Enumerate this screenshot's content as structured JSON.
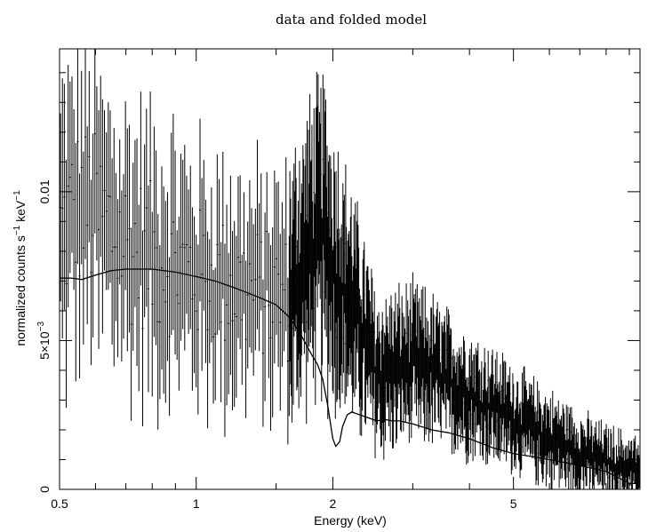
{
  "chart_data": {
    "type": "scatter",
    "title": "data and folded model",
    "xlabel": "Energy (keV)",
    "ylabel": {
      "base": "normalized counts s",
      "exp1": "−1",
      "mid": " keV",
      "exp2": "−1"
    },
    "x_scale": "log",
    "xlim": [
      0.5,
      9.5
    ],
    "ylim": [
      0,
      0.0148
    ],
    "x_ticks": [
      {
        "value": 0.5,
        "label": "0.5"
      },
      {
        "value": 1,
        "label": "1"
      },
      {
        "value": 2,
        "label": "2"
      },
      {
        "value": 5,
        "label": "5"
      }
    ],
    "y_ticks": [
      {
        "value": 0,
        "label": "0"
      },
      {
        "value": 0.005,
        "label": "5×10",
        "exp": "−3"
      },
      {
        "value": 0.01,
        "label": "0.01"
      }
    ],
    "colors": {
      "ink": "#000000",
      "background": "#ffffff"
    },
    "series": [
      {
        "kind": "folded-model",
        "x": [
          0.5,
          0.53,
          0.56,
          0.6,
          0.65,
          0.7,
          0.75,
          0.8,
          0.9,
          1.0,
          1.1,
          1.2,
          1.3,
          1.4,
          1.5,
          1.6,
          1.7,
          1.8,
          1.85,
          1.9,
          1.95,
          2.0,
          2.03,
          2.07,
          2.1,
          2.15,
          2.2,
          2.3,
          2.4,
          2.5,
          2.6,
          2.7,
          2.8,
          3.0,
          3.3,
          3.6,
          4.0,
          4.5,
          5.0,
          5.5,
          6.0,
          6.5,
          7.0,
          7.5,
          8.0,
          8.5,
          9.0,
          9.5
        ],
        "y": [
          0.0071,
          0.0071,
          0.00705,
          0.0072,
          0.00735,
          0.0074,
          0.0074,
          0.0074,
          0.0073,
          0.00715,
          0.007,
          0.0068,
          0.0066,
          0.0064,
          0.0062,
          0.0058,
          0.0052,
          0.0045,
          0.0042,
          0.0037,
          0.0028,
          0.0017,
          0.00145,
          0.0016,
          0.0021,
          0.0025,
          0.0026,
          0.0025,
          0.0024,
          0.0023,
          0.00235,
          0.0023,
          0.0023,
          0.0022,
          0.002,
          0.0019,
          0.0017,
          0.0014,
          0.0012,
          0.0011,
          0.001,
          0.0009,
          0.0008,
          0.0007,
          0.0006,
          0.0004,
          0.0002,
          0.0002
        ]
      },
      {
        "kind": "binned-data",
        "shape_x": [
          0.5,
          0.55,
          0.6,
          0.7,
          0.8,
          0.9,
          1.0,
          1.2,
          1.4,
          1.6,
          1.8,
          1.9,
          2.0,
          2.1,
          2.2,
          2.35,
          2.5,
          2.7,
          3.0,
          3.3,
          3.6,
          4.0,
          4.5,
          5.0,
          5.5,
          6.0,
          7.0,
          8.0,
          9.5
        ],
        "shape_y": [
          0.0085,
          0.0095,
          0.0092,
          0.0082,
          0.0078,
          0.0075,
          0.0072,
          0.0068,
          0.0066,
          0.0064,
          0.0082,
          0.0086,
          0.0076,
          0.0068,
          0.0062,
          0.005,
          0.0038,
          0.004,
          0.0042,
          0.004,
          0.0036,
          0.0032,
          0.0028,
          0.0024,
          0.002,
          0.0017,
          0.0012,
          0.0009,
          0.0006
        ],
        "shape_err": [
          0.0035,
          0.0035,
          0.0034,
          0.0032,
          0.003,
          0.0029,
          0.0028,
          0.0027,
          0.0026,
          0.0026,
          0.0028,
          0.003,
          0.0028,
          0.0024,
          0.0022,
          0.0019,
          0.0016,
          0.0015,
          0.0015,
          0.0014,
          0.0013,
          0.0012,
          0.0011,
          0.001,
          0.00095,
          0.0009,
          0.0008,
          0.0007,
          0.00065
        ],
        "bins": [
          {
            "x_from": 0.5,
            "x_to": 1.6,
            "count": 120
          },
          {
            "x_from": 1.6,
            "x_to": 2.35,
            "count": 110
          },
          {
            "x_from": 2.35,
            "x_to": 9.5,
            "count": 380
          }
        ]
      }
    ]
  }
}
